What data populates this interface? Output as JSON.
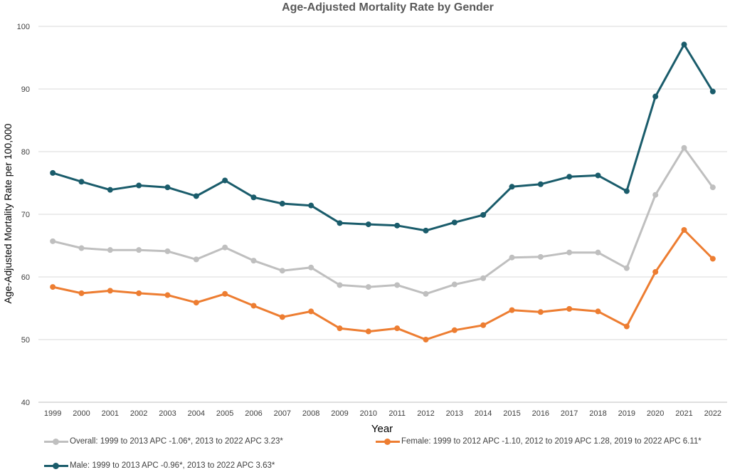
{
  "chart_data": {
    "type": "line",
    "title": "Age-Adjusted Mortality Rate by Gender",
    "xlabel": "Year",
    "ylabel": "Age-Adjusted Mortality Rate per 100,000",
    "ylim": [
      40,
      100
    ],
    "yticks": [
      40,
      50,
      60,
      70,
      80,
      90,
      100
    ],
    "grid": true,
    "legend_position": "bottom",
    "categories": [
      "1999",
      "2000",
      "2001",
      "2002",
      "2003",
      "2004",
      "2005",
      "2006",
      "2007",
      "2008",
      "2009",
      "2010",
      "2011",
      "2012",
      "2013",
      "2014",
      "2015",
      "2016",
      "2017",
      "2018",
      "2019",
      "2020",
      "2021",
      "2022"
    ],
    "series": [
      {
        "name": "Overall: 1999 to 2013 APC -1.06*, 2013 to 2022 APC 3.23*",
        "color": "#bfbfbf",
        "values": [
          65.7,
          64.6,
          64.3,
          64.3,
          64.1,
          62.8,
          64.7,
          62.6,
          61.0,
          61.5,
          58.7,
          58.4,
          58.7,
          57.3,
          58.8,
          59.8,
          63.1,
          63.2,
          63.9,
          63.9,
          61.4,
          73.1,
          80.6,
          74.3
        ]
      },
      {
        "name": "Female: 1999 to 2012 APC -1.10, 2012 to 2019 APC 1.28, 2019 to 2022 APC 6.11*",
        "color": "#ed7d31",
        "values": [
          58.4,
          57.4,
          57.8,
          57.4,
          57.1,
          55.9,
          57.3,
          55.4,
          53.6,
          54.5,
          51.8,
          51.3,
          51.8,
          50.0,
          51.5,
          52.3,
          54.7,
          54.4,
          54.9,
          54.5,
          52.1,
          60.8,
          67.5,
          62.9
        ]
      },
      {
        "name": "Male: 1999 to 2013 APC -0.96*, 2013 to 2022 APC 3.63*",
        "color": "#1a5c6b",
        "values": [
          76.6,
          75.2,
          73.9,
          74.6,
          74.3,
          72.9,
          75.4,
          72.7,
          71.7,
          71.4,
          68.6,
          68.4,
          68.2,
          67.4,
          68.7,
          69.9,
          74.4,
          74.8,
          76.0,
          76.2,
          73.7,
          88.8,
          97.1,
          89.6
        ]
      }
    ]
  }
}
